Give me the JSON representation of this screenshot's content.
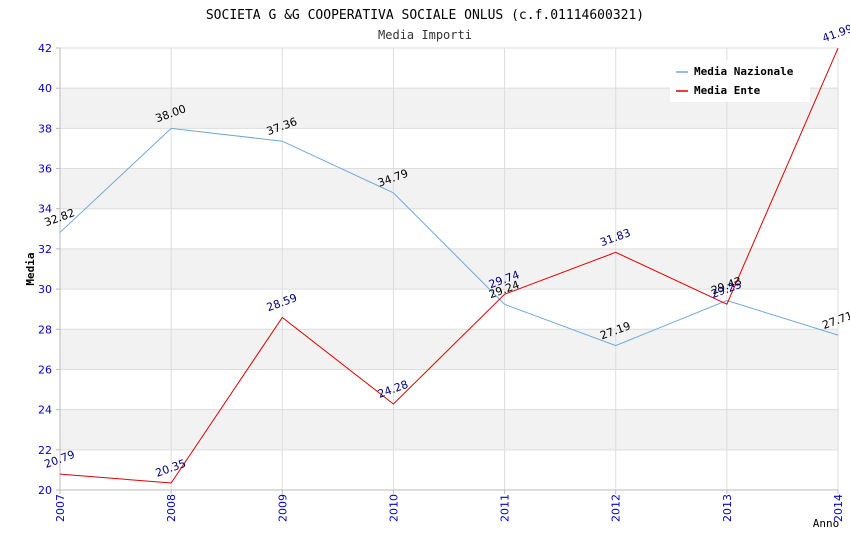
{
  "chart_data": {
    "type": "line",
    "title": "SOCIETA G &G COOPERATIVA SOCIALE ONLUS (c.f.01114600321)",
    "subtitle": "Media Importi",
    "xlabel": "Anno",
    "ylabel": "Media",
    "ylim": [
      20,
      42
    ],
    "ytick_step": 2,
    "categories": [
      "2007",
      "2008",
      "2009",
      "2010",
      "2011",
      "2012",
      "2013",
      "2014"
    ],
    "legend_position": "top-right",
    "series": [
      {
        "name": "Media Nazionale",
        "color": "#6fa8dc",
        "label_color": "#000000",
        "values": [
          32.82,
          38.0,
          37.36,
          34.79,
          29.24,
          27.19,
          29.43,
          27.71
        ],
        "labels": [
          "32.82",
          "38.00",
          "37.36",
          "34.79",
          "29.24",
          "27.19",
          "29.43",
          "27.71"
        ]
      },
      {
        "name": "Media Ente",
        "color": "#e00000",
        "label_color": "#000080",
        "values": [
          20.79,
          20.35,
          28.59,
          24.28,
          29.74,
          31.83,
          29.25,
          41.99
        ],
        "labels": [
          "20.79",
          "20.35",
          "28.59",
          "24.28",
          "29.74",
          "31.83",
          "29.25",
          "41.99"
        ]
      }
    ]
  }
}
